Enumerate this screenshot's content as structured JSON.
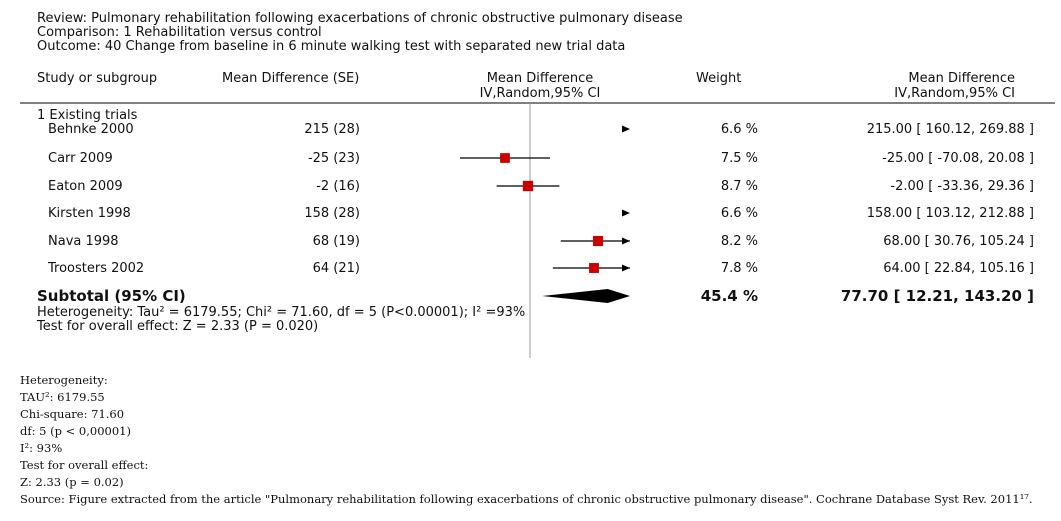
{
  "header": {
    "review": "Review:  Pulmonary rehabilitation following exacerbations of chronic obstructive pulmonary disease",
    "comparison": "Comparison:  1 Rehabilitation versus control",
    "outcome": "Outcome:  40 Change from baseline in 6 minute walking test with separated new trial data"
  },
  "columns": {
    "study": "Study or subgroup",
    "md_se": "Mean Difference (SE)",
    "plot_title": "Mean Difference",
    "plot_sub": "IV,Random,95% CI",
    "weight": "Weight",
    "md_title": "Mean Difference",
    "md_sub": "IV,Random,95% CI"
  },
  "subgroup_label": "1 Existing trials",
  "rows": [
    {
      "study": "Behnke 2000",
      "md_se": "215 (28)",
      "weight": "6.6 %",
      "ci_text": "215.00 [ 160.12, 269.88 ]"
    },
    {
      "study": "Carr 2009",
      "md_se": "-25 (23)",
      "weight": "7.5 %",
      "ci_text": "-25.00 [ -70.08, 20.08 ]"
    },
    {
      "study": "Eaton 2009",
      "md_se": "-2 (16)",
      "weight": "8.7 %",
      "ci_text": "-2.00 [ -33.36, 29.36 ]"
    },
    {
      "study": "Kirsten 1998",
      "md_se": "158 (28)",
      "weight": "6.6 %",
      "ci_text": "158.00 [ 103.12, 212.88 ]"
    },
    {
      "study": "Nava 1998",
      "md_se": "68 (19)",
      "weight": "8.2 %",
      "ci_text": "68.00 [ 30.76, 105.24 ]"
    },
    {
      "study": "Troosters 2002",
      "md_se": "64 (21)",
      "weight": "7.8 %",
      "ci_text": "64.00 [ 22.84, 105.16 ]"
    }
  ],
  "subtotal": {
    "label": "Subtotal (95% CI)",
    "weight": "45.4 %",
    "ci_text": "77.70 [ 12.21, 143.20 ]",
    "heterogeneity": "Heterogeneity: Tau² = 6179.55; Chi² = 71.60, df = 5 (P<0.00001); I² =93%",
    "overall": "Test for overall effect: Z = 2.33 (P = 0.020)"
  },
  "chart_data": {
    "type": "forest",
    "x_null": 0,
    "xlim": [
      -100,
      100
    ],
    "studies": [
      {
        "name": "Behnke 2000",
        "md": 215.0,
        "lower": 160.12,
        "upper": 269.88,
        "weight": 6.6
      },
      {
        "name": "Carr 2009",
        "md": -25.0,
        "lower": -70.08,
        "upper": 20.08,
        "weight": 7.5
      },
      {
        "name": "Eaton 2009",
        "md": -2.0,
        "lower": -33.36,
        "upper": 29.36,
        "weight": 8.7
      },
      {
        "name": "Kirsten 1998",
        "md": 158.0,
        "lower": 103.12,
        "upper": 212.88,
        "weight": 6.6
      },
      {
        "name": "Nava 1998",
        "md": 68.0,
        "lower": 30.76,
        "upper": 105.24,
        "weight": 8.2
      },
      {
        "name": "Troosters 2002",
        "md": 64.0,
        "lower": 22.84,
        "upper": 105.16,
        "weight": 7.8
      }
    ],
    "pooled": {
      "md": 77.7,
      "lower": 12.21,
      "upper": 143.2,
      "weight": 45.4
    },
    "marker_color": "#cc0000"
  },
  "footnotes": {
    "lines": [
      "Heterogeneity:",
      "TAU²: 6179.55",
      "Chi-square: 71.60",
      "df: 5 (p < 0,00001)",
      "I²: 93%",
      "Test for overall effect:",
      "Z: 2.33 (p = 0.02)"
    ],
    "source": "Source: Figure extracted from the article \"Pulmonary rehabilitation following exacerbations of chronic obstructive pulmonary disease\". Cochrane Database Syst Rev. 2011¹⁷."
  }
}
